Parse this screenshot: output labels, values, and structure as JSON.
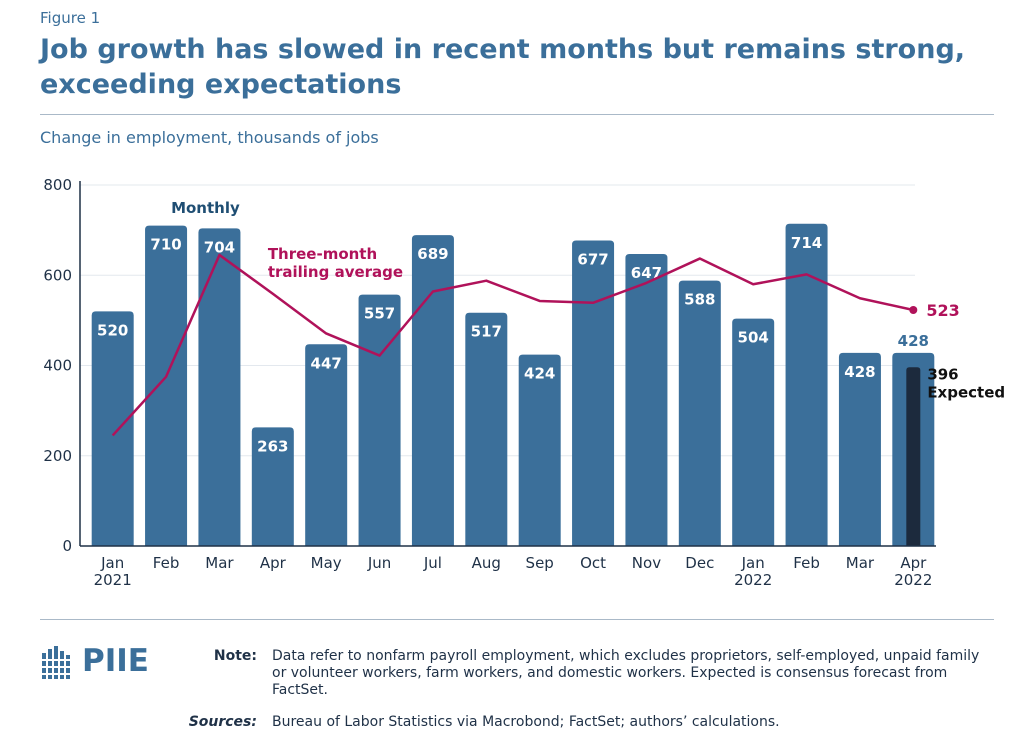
{
  "figure_label": "Figure 1",
  "title": "Job growth has slowed in recent months but remains strong, exceeding expectations",
  "subtitle": "Change in employment, thousands of jobs",
  "logo_text": "PIIE",
  "note_label": "Note:",
  "note_text": "Data refer to nonfarm payroll employment, which excludes proprietors, self-employed, unpaid family or volunteer workers, farm workers, and domestic workers. Expected is consensus forecast from FactSet.",
  "sources_label": "Sources:",
  "sources_text": "Bureau of Labor Statistics via Macrobond; FactSet; authors’ calculations.",
  "colors": {
    "bar": "#3b6f9a",
    "line": "#b0125a",
    "expected": "#1c2a3d",
    "text": "#1f3147",
    "grid": "#e3e8ee"
  },
  "chart_data": {
    "type": "bar",
    "categories": [
      [
        "Jan",
        "2021"
      ],
      [
        "Feb",
        ""
      ],
      [
        "Mar",
        ""
      ],
      [
        "Apr",
        ""
      ],
      [
        "May",
        ""
      ],
      [
        "Jun",
        ""
      ],
      [
        "Jul",
        ""
      ],
      [
        "Aug",
        ""
      ],
      [
        "Sep",
        ""
      ],
      [
        "Oct",
        ""
      ],
      [
        "Nov",
        ""
      ],
      [
        "Dec",
        ""
      ],
      [
        "Jan",
        "2022"
      ],
      [
        "Feb",
        ""
      ],
      [
        "Mar",
        ""
      ],
      [
        "Apr",
        "2022"
      ]
    ],
    "series": [
      {
        "name": "Monthly",
        "type": "bar",
        "values": [
          520,
          710,
          704,
          263,
          447,
          557,
          689,
          517,
          424,
          677,
          647,
          588,
          504,
          714,
          428,
          428
        ],
        "labels": [
          "520",
          "710",
          "704",
          "263",
          "447",
          "557",
          "689",
          "517",
          "424",
          "677",
          "647",
          "588",
          "504",
          "714",
          "428",
          "428"
        ]
      },
      {
        "name": "Three-month trailing average",
        "type": "line",
        "values": [
          245,
          375,
          645,
          559,
          471,
          422,
          564,
          588,
          543,
          539,
          583,
          637,
          580,
          602,
          549,
          523
        ],
        "end_label": "523"
      },
      {
        "name": "Expected",
        "type": "bar",
        "category_index": 15,
        "value": 396,
        "label_value": "396",
        "label_text": "Expected"
      }
    ],
    "series_labels": {
      "monthly": "Monthly",
      "average_line1": "Three-month",
      "average_line2": "trailing average"
    },
    "yticks": [
      0,
      200,
      400,
      600,
      800
    ],
    "ylim": [
      0,
      800
    ],
    "grid": true
  }
}
